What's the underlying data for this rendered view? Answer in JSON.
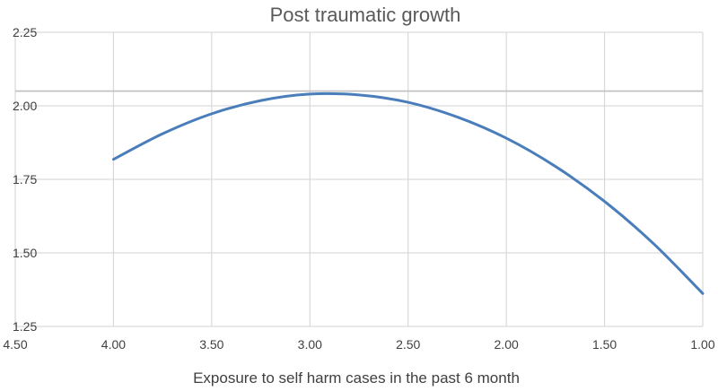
{
  "chart_data": {
    "type": "line",
    "title": "Post traumatic growth",
    "xlabel": "Exposure to self harm cases in the past 6 month",
    "ylabel": "",
    "x_reversed": true,
    "xlim": [
      4.5,
      1.0
    ],
    "ylim": [
      1.25,
      2.25
    ],
    "x_ticks": [
      "4.50",
      "4.00",
      "3.50",
      "3.00",
      "2.50",
      "2.00",
      "1.50",
      "1.00"
    ],
    "y_ticks": [
      "1.25",
      "1.50",
      "1.75",
      "2.00",
      "2.25"
    ],
    "grid": true,
    "reference_line_y": 2.05,
    "series": [
      {
        "color": "#4a7ebb",
        "x": [
          4.0,
          3.75,
          3.5,
          3.25,
          3.0,
          2.75,
          2.5,
          2.25,
          2.0,
          1.75,
          1.5,
          1.25,
          1.0
        ],
        "y": [
          1.818,
          1.905,
          1.973,
          2.018,
          2.04,
          2.037,
          2.012,
          1.962,
          1.89,
          1.794,
          1.675,
          1.531,
          1.362
        ]
      }
    ]
  }
}
